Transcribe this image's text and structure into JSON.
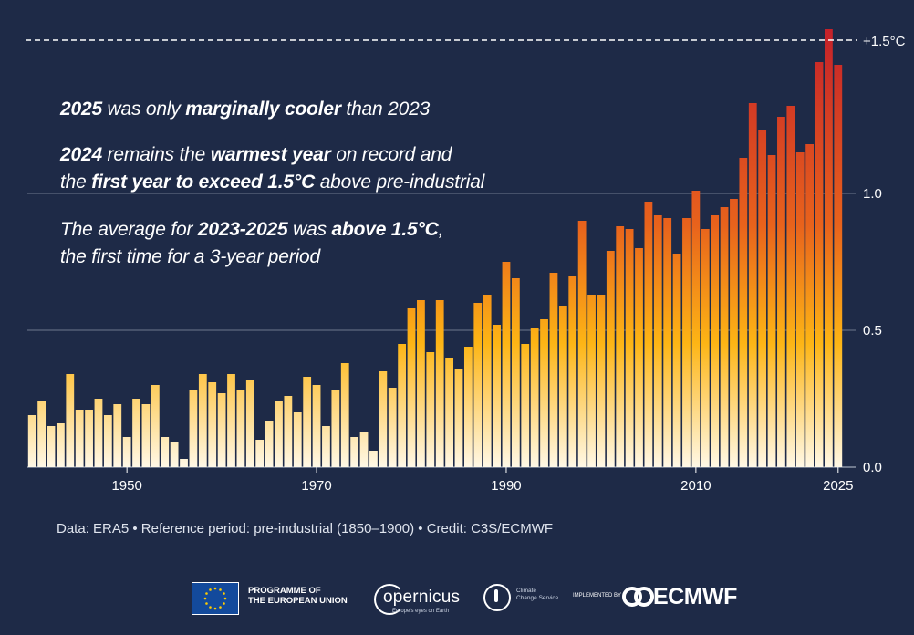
{
  "headlines": {
    "line1": {
      "b1": "2025",
      "t1": " was only ",
      "b2": "marginally cooler",
      "t2": " than 2023"
    },
    "line2": {
      "b1": "2024",
      "t1": " remains the ",
      "b2": "warmest year",
      "t2": " on record and"
    },
    "line3": {
      "t1": "the ",
      "b1": "first year to exceed 1.5°C",
      "t2": " above pre-industrial"
    },
    "line4": {
      "t1": "The average for ",
      "b1": "2023-2025",
      "t2": " was ",
      "b2": "above 1.5°C",
      "t3": ","
    },
    "line5": {
      "t1": "the first time for a 3-year period"
    }
  },
  "credit": "Data: ERA5 • Reference period: pre-industrial (1850–1900) • Credit: C3S/ECMWF",
  "logos": {
    "eu_line1": "PROGRAMME OF",
    "eu_line2": "THE EUROPEAN UNION",
    "copernicus": "opernicus",
    "copernicus_sub": "Europe's eyes on Earth",
    "c3s_line1": "Climate",
    "c3s_line2": "Change Service",
    "implemented_by": "IMPLEMENTED BY",
    "ecmwf": "ECMWF"
  },
  "colors": {
    "background": "#1e2a47",
    "bar_low": "#fff8e6",
    "bar_mid": "#fdb515",
    "bar_high_1": "#e8621c",
    "bar_high_2": "#c4202a",
    "gridline": "#8a93a6",
    "text": "#ffffff"
  },
  "chart_data": {
    "type": "bar",
    "x": [
      1940,
      1941,
      1942,
      1943,
      1944,
      1945,
      1946,
      1947,
      1948,
      1949,
      1950,
      1951,
      1952,
      1953,
      1954,
      1955,
      1956,
      1957,
      1958,
      1959,
      1960,
      1961,
      1962,
      1963,
      1964,
      1965,
      1966,
      1967,
      1968,
      1969,
      1970,
      1971,
      1972,
      1973,
      1974,
      1975,
      1976,
      1977,
      1978,
      1979,
      1980,
      1981,
      1982,
      1983,
      1984,
      1985,
      1986,
      1987,
      1988,
      1989,
      1990,
      1991,
      1992,
      1993,
      1994,
      1995,
      1996,
      1997,
      1998,
      1999,
      2000,
      2001,
      2002,
      2003,
      2004,
      2005,
      2006,
      2007,
      2008,
      2009,
      2010,
      2011,
      2012,
      2013,
      2014,
      2015,
      2016,
      2017,
      2018,
      2019,
      2020,
      2021,
      2022,
      2023,
      2024,
      2025
    ],
    "values": [
      0.19,
      0.24,
      0.15,
      0.16,
      0.34,
      0.21,
      0.21,
      0.25,
      0.19,
      0.23,
      0.11,
      0.25,
      0.23,
      0.3,
      0.11,
      0.09,
      0.03,
      0.28,
      0.34,
      0.31,
      0.27,
      0.34,
      0.28,
      0.32,
      0.1,
      0.17,
      0.24,
      0.26,
      0.2,
      0.33,
      0.3,
      0.15,
      0.28,
      0.38,
      0.11,
      0.13,
      0.06,
      0.35,
      0.29,
      0.45,
      0.58,
      0.61,
      0.42,
      0.61,
      0.4,
      0.36,
      0.44,
      0.6,
      0.63,
      0.52,
      0.75,
      0.69,
      0.45,
      0.51,
      0.54,
      0.71,
      0.59,
      0.7,
      0.9,
      0.63,
      0.63,
      0.79,
      0.88,
      0.87,
      0.8,
      0.97,
      0.92,
      0.91,
      0.78,
      0.91,
      1.01,
      0.87,
      0.92,
      0.95,
      0.98,
      1.13,
      1.33,
      1.23,
      1.14,
      1.28,
      1.32,
      1.15,
      1.18,
      1.48,
      1.6,
      1.47
    ],
    "ylim": [
      0.0,
      1.6
    ],
    "y_ticks": [
      "0.0",
      "0.5",
      "1.0"
    ],
    "y_tick_values": [
      0.0,
      0.5,
      1.0
    ],
    "x_ticks": [
      "1950",
      "1970",
      "1990",
      "2010",
      "2025"
    ],
    "x_tick_values": [
      1950,
      1970,
      1990,
      2010,
      2025
    ],
    "threshold": {
      "value": 1.5,
      "label": "+1.5°C"
    },
    "grid": "horizontal at y ticks",
    "legend": "none"
  }
}
